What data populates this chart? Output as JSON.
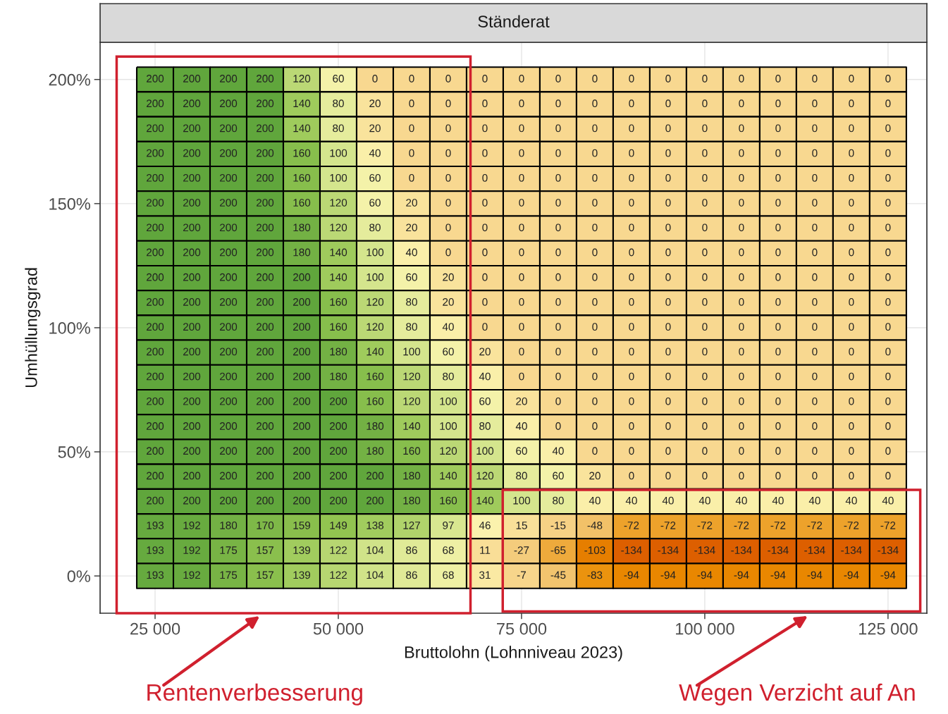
{
  "chart_data": {
    "type": "heatmap",
    "title": "Ständerat",
    "xlabel": "Bruttolohn (Lohnniveau 2023)",
    "ylabel": "Umhüllungsgrad",
    "x": [
      25000,
      30000,
      35000,
      40000,
      45000,
      50000,
      55000,
      60000,
      65000,
      70000,
      75000,
      80000,
      85000,
      90000,
      95000,
      100000,
      105000,
      110000,
      115000,
      120000,
      125000
    ],
    "y": [
      200,
      190,
      180,
      170,
      160,
      150,
      140,
      130,
      120,
      110,
      100,
      90,
      80,
      70,
      60,
      50,
      40,
      30,
      20,
      10,
      0
    ],
    "cells": [
      [
        200,
        200,
        200,
        200,
        120,
        60,
        0,
        0,
        0,
        0,
        0,
        0,
        0,
        0,
        0,
        0,
        0,
        0,
        0,
        0,
        0
      ],
      [
        200,
        200,
        200,
        200,
        140,
        80,
        20,
        0,
        0,
        0,
        0,
        0,
        0,
        0,
        0,
        0,
        0,
        0,
        0,
        0,
        0
      ],
      [
        200,
        200,
        200,
        200,
        140,
        80,
        20,
        0,
        0,
        0,
        0,
        0,
        0,
        0,
        0,
        0,
        0,
        0,
        0,
        0,
        0
      ],
      [
        200,
        200,
        200,
        200,
        160,
        100,
        40,
        0,
        0,
        0,
        0,
        0,
        0,
        0,
        0,
        0,
        0,
        0,
        0,
        0,
        0
      ],
      [
        200,
        200,
        200,
        200,
        160,
        100,
        60,
        0,
        0,
        0,
        0,
        0,
        0,
        0,
        0,
        0,
        0,
        0,
        0,
        0,
        0
      ],
      [
        200,
        200,
        200,
        200,
        160,
        120,
        60,
        20,
        0,
        0,
        0,
        0,
        0,
        0,
        0,
        0,
        0,
        0,
        0,
        0,
        0
      ],
      [
        200,
        200,
        200,
        200,
        180,
        120,
        80,
        20,
        0,
        0,
        0,
        0,
        0,
        0,
        0,
        0,
        0,
        0,
        0,
        0,
        0
      ],
      [
        200,
        200,
        200,
        200,
        180,
        140,
        100,
        40,
        0,
        0,
        0,
        0,
        0,
        0,
        0,
        0,
        0,
        0,
        0,
        0,
        0
      ],
      [
        200,
        200,
        200,
        200,
        200,
        140,
        100,
        60,
        20,
        0,
        0,
        0,
        0,
        0,
        0,
        0,
        0,
        0,
        0,
        0,
        0
      ],
      [
        200,
        200,
        200,
        200,
        200,
        160,
        120,
        80,
        20,
        0,
        0,
        0,
        0,
        0,
        0,
        0,
        0,
        0,
        0,
        0,
        0
      ],
      [
        200,
        200,
        200,
        200,
        200,
        160,
        120,
        80,
        40,
        0,
        0,
        0,
        0,
        0,
        0,
        0,
        0,
        0,
        0,
        0,
        0
      ],
      [
        200,
        200,
        200,
        200,
        200,
        180,
        140,
        100,
        60,
        20,
        0,
        0,
        0,
        0,
        0,
        0,
        0,
        0,
        0,
        0,
        0
      ],
      [
        200,
        200,
        200,
        200,
        200,
        180,
        160,
        120,
        80,
        40,
        0,
        0,
        0,
        0,
        0,
        0,
        0,
        0,
        0,
        0,
        0
      ],
      [
        200,
        200,
        200,
        200,
        200,
        200,
        160,
        120,
        100,
        60,
        20,
        0,
        0,
        0,
        0,
        0,
        0,
        0,
        0,
        0,
        0
      ],
      [
        200,
        200,
        200,
        200,
        200,
        200,
        180,
        140,
        100,
        80,
        40,
        0,
        0,
        0,
        0,
        0,
        0,
        0,
        0,
        0,
        0
      ],
      [
        200,
        200,
        200,
        200,
        200,
        200,
        180,
        160,
        120,
        100,
        60,
        40,
        0,
        0,
        0,
        0,
        0,
        0,
        0,
        0,
        0
      ],
      [
        200,
        200,
        200,
        200,
        200,
        200,
        200,
        180,
        140,
        120,
        80,
        60,
        20,
        0,
        0,
        0,
        0,
        0,
        0,
        0,
        0
      ],
      [
        200,
        200,
        200,
        200,
        200,
        200,
        200,
        180,
        160,
        140,
        100,
        80,
        40,
        40,
        40,
        40,
        40,
        40,
        40,
        40,
        40
      ],
      [
        193,
        192,
        180,
        170,
        159,
        149,
        138,
        127,
        97,
        46,
        15,
        -15,
        -48,
        -72,
        -72,
        -72,
        -72,
        -72,
        -72,
        -72,
        -72
      ],
      [
        193,
        192,
        175,
        157,
        139,
        122,
        104,
        86,
        68,
        11,
        -27,
        -65,
        -103,
        -134,
        -134,
        -134,
        -134,
        -134,
        -134,
        -134,
        -134
      ],
      [
        193,
        192,
        175,
        157,
        139,
        122,
        104,
        86,
        68,
        31,
        -7,
        -45,
        -83,
        -94,
        -94,
        -94,
        -94,
        -94,
        -94,
        -94,
        -94
      ]
    ],
    "data_labels": true,
    "xlim": [
      17500,
      130300
    ],
    "ylim": [
      -15,
      215
    ],
    "xticks": [
      {
        "value": 25000,
        "label": "25 000"
      },
      {
        "value": 50000,
        "label": "50 000"
      },
      {
        "value": 75000,
        "label": "75 000"
      },
      {
        "value": 100000,
        "label": "100 000"
      },
      {
        "value": 125000,
        "label": "125 000"
      }
    ],
    "yticks": [
      {
        "value": 0,
        "label": "0%"
      },
      {
        "value": 50,
        "label": "50%"
      },
      {
        "value": 100,
        "label": "100%"
      },
      {
        "value": 150,
        "label": "150%"
      },
      {
        "value": 200,
        "label": "200%"
      }
    ],
    "grid": true,
    "annotations": [
      "Rentenverbesserung",
      "Wegen Verzicht auf An"
    ]
  }
}
